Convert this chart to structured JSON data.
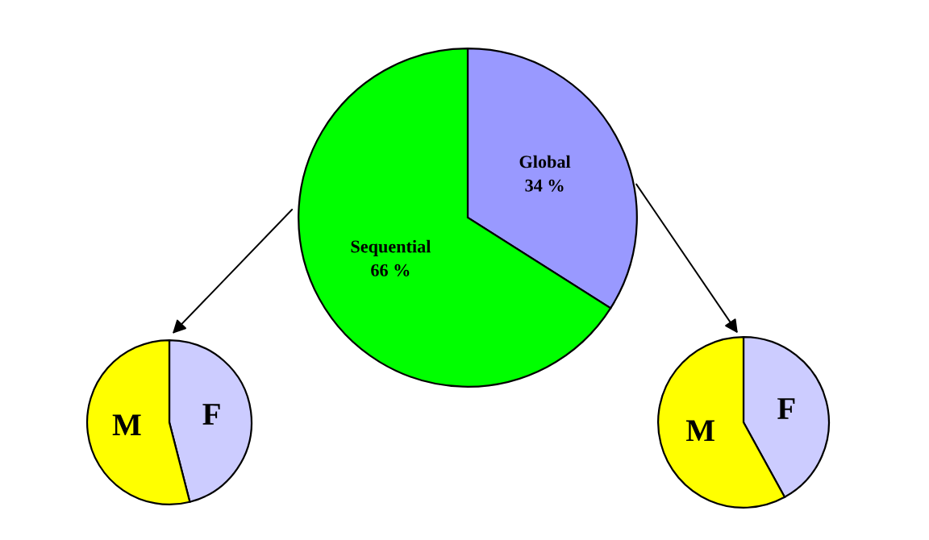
{
  "chart_data": [
    {
      "type": "pie",
      "categories": [
        "Global",
        "Sequential"
      ],
      "values": [
        34,
        66
      ],
      "colors": [
        "#9999ff",
        "#00ff00"
      ],
      "value_labels": [
        "34 %",
        "66 %"
      ]
    },
    {
      "type": "pie",
      "categories": [
        "F",
        "M"
      ],
      "values": [
        46,
        54
      ],
      "colors": [
        "#ccccff",
        "#ffff00"
      ]
    },
    {
      "type": "pie",
      "categories": [
        "F",
        "M"
      ],
      "values": [
        42,
        58
      ],
      "colors": [
        "#ccccff",
        "#ffff00"
      ]
    }
  ]
}
